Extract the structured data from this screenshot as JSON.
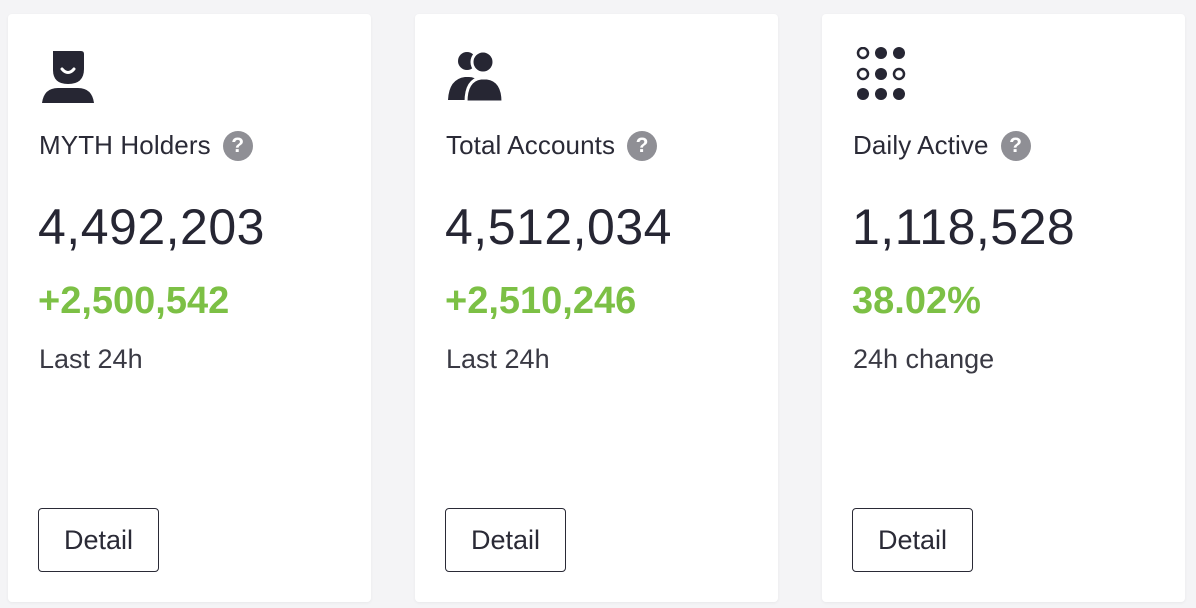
{
  "cards": [
    {
      "icon": "user-smile-icon",
      "title": "MYTH Holders",
      "value": "4,492,203",
      "change": "+2,500,542",
      "period": "Last 24h",
      "button": "Detail"
    },
    {
      "icon": "users-group-icon",
      "title": "Total Accounts",
      "value": "4,512,034",
      "change": "+2,510,246",
      "period": "Last 24h",
      "button": "Detail"
    },
    {
      "icon": "dots-grid-icon",
      "title": "Daily Active",
      "value": "1,118,528",
      "change": "38.02%",
      "period": "24h change",
      "button": "Detail"
    }
  ],
  "help_symbol": "?",
  "colors": {
    "positive": "#7cc045",
    "text": "#262633",
    "muted": "#8f8f95",
    "background": "#f4f4f6",
    "card": "#ffffff"
  }
}
